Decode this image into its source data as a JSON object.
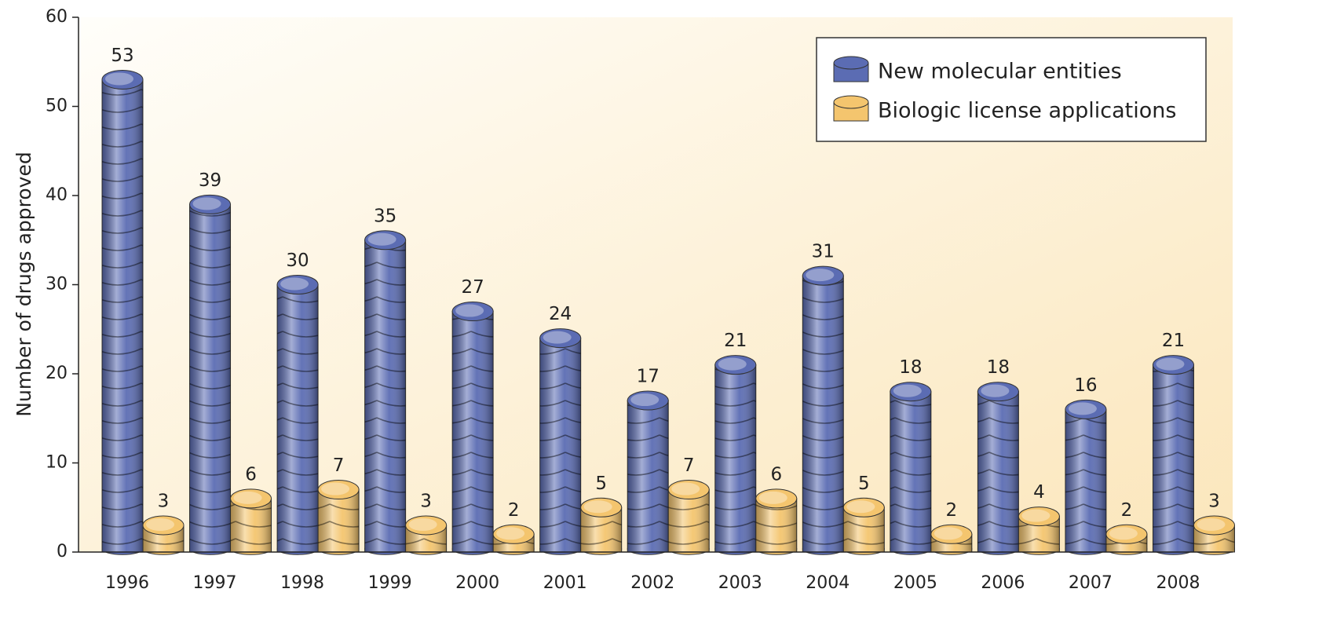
{
  "chart_data": {
    "type": "bar",
    "y_label": "Number of drugs approved",
    "categories": [
      "1996",
      "1997",
      "1998",
      "1999",
      "2000",
      "2001",
      "2002",
      "2003",
      "2004",
      "2005",
      "2006",
      "2007",
      "2008"
    ],
    "series": [
      {
        "name": "New molecular entities",
        "color": "#5b6cb3",
        "values": [
          53,
          39,
          30,
          35,
          27,
          24,
          17,
          21,
          31,
          18,
          18,
          16,
          21
        ]
      },
      {
        "name": "Biologic license applications",
        "color": "#f4c56e",
        "values": [
          3,
          6,
          7,
          3,
          2,
          5,
          7,
          6,
          5,
          2,
          4,
          2,
          3
        ]
      }
    ],
    "ylim": [
      0,
      60
    ],
    "yticks": [
      0,
      10,
      20,
      30,
      40,
      50,
      60
    ],
    "legend": "upper right"
  }
}
